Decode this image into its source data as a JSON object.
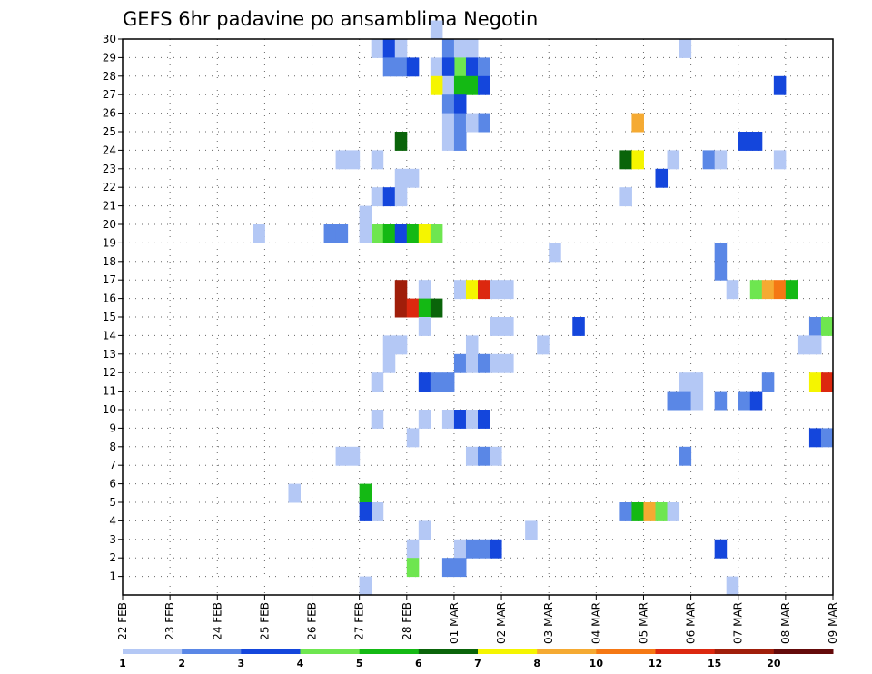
{
  "chart_data": {
    "type": "heatmap",
    "title": "GEFS 6hr padavine po ansamblima Negotin",
    "x_labels": [
      "22 FEB",
      "23 FEB",
      "24 FEB",
      "25 FEB",
      "26 FEB",
      "27 FEB",
      "28 FEB",
      "01 MAR",
      "02 MAR",
      "03 MAR",
      "04 MAR",
      "05 MAR",
      "06 MAR",
      "07 MAR",
      "08 MAR",
      "09 MAR"
    ],
    "x_unit": "6-hour steps",
    "x_range": [
      0,
      60
    ],
    "y_range": [
      0,
      30
    ],
    "y_ticks": [
      1,
      2,
      3,
      4,
      5,
      6,
      7,
      8,
      9,
      10,
      11,
      12,
      13,
      14,
      15,
      16,
      17,
      18,
      19,
      20,
      21,
      22,
      23,
      24,
      25,
      26,
      27,
      28,
      29,
      30
    ],
    "grid": true,
    "legend_placement": "bottom",
    "levels": [
      1,
      2,
      3,
      4,
      5,
      6,
      7,
      8,
      10,
      12,
      15,
      20
    ],
    "colors": [
      "#b4c8f5",
      "#5a87e6",
      "#1446dc",
      "#6ee650",
      "#14b914",
      "#0a640a",
      "#f5f500",
      "#f5aa32",
      "#f57814",
      "#dc280f",
      "#a01e0a",
      "#640a0a"
    ],
    "cells": [
      [
        26.5,
        30,
        0
      ],
      [
        27.5,
        29,
        1
      ],
      [
        29.5,
        29,
        0
      ],
      [
        28.5,
        29,
        0
      ],
      [
        21.5,
        29,
        0
      ],
      [
        22.5,
        29,
        0
      ],
      [
        22.5,
        29,
        2
      ],
      [
        23.5,
        29,
        0
      ],
      [
        47.5,
        29,
        0
      ],
      [
        28.5,
        28,
        3
      ],
      [
        29.5,
        28,
        2
      ],
      [
        30.5,
        28,
        1
      ],
      [
        22.5,
        28,
        1
      ],
      [
        23.5,
        28,
        1
      ],
      [
        24.5,
        28,
        2
      ],
      [
        26.5,
        28,
        0
      ],
      [
        27.5,
        28,
        2
      ],
      [
        27.5,
        27,
        0
      ],
      [
        28.5,
        27,
        4
      ],
      [
        29.5,
        27,
        4
      ],
      [
        30.5,
        27,
        2
      ],
      [
        26.5,
        27,
        6
      ],
      [
        55.5,
        27,
        2
      ],
      [
        27.5,
        26,
        1
      ],
      [
        28.5,
        26,
        2
      ],
      [
        27.5,
        25,
        0
      ],
      [
        28.5,
        25,
        1
      ],
      [
        30.5,
        25,
        1
      ],
      [
        29.5,
        25,
        0
      ],
      [
        43.5,
        25,
        7
      ],
      [
        27.5,
        24,
        0
      ],
      [
        28.5,
        24,
        0
      ],
      [
        28.5,
        24,
        1
      ],
      [
        23.5,
        24,
        5
      ],
      [
        52.5,
        24,
        2
      ],
      [
        53.5,
        24,
        2
      ],
      [
        18.5,
        23,
        0
      ],
      [
        21.5,
        23,
        0
      ],
      [
        42.5,
        23,
        5
      ],
      [
        43.5,
        23,
        6
      ],
      [
        46.5,
        23,
        0
      ],
      [
        49.5,
        23,
        1
      ],
      [
        50.5,
        23,
        0
      ],
      [
        55.5,
        23,
        0
      ],
      [
        19.5,
        23,
        0
      ],
      [
        45.5,
        22,
        2
      ],
      [
        23.5,
        22,
        0
      ],
      [
        24.5,
        22,
        0
      ],
      [
        21.5,
        21,
        0
      ],
      [
        22.5,
        21,
        2
      ],
      [
        23.5,
        21,
        0
      ],
      [
        42.5,
        21,
        0
      ],
      [
        20.5,
        20,
        0
      ],
      [
        11.5,
        19,
        0
      ],
      [
        17.5,
        19,
        1
      ],
      [
        18.5,
        19,
        1
      ],
      [
        21.5,
        19,
        3
      ],
      [
        22.5,
        19,
        4
      ],
      [
        23.5,
        19,
        2
      ],
      [
        24.5,
        19,
        4
      ],
      [
        25.5,
        19,
        6
      ],
      [
        26.5,
        19,
        3
      ],
      [
        20.5,
        19,
        0
      ],
      [
        36.5,
        18,
        0
      ],
      [
        50.5,
        18,
        1
      ],
      [
        25.5,
        16,
        0
      ],
      [
        28.5,
        16,
        0
      ],
      [
        29.5,
        16,
        6
      ],
      [
        30.5,
        16,
        9
      ],
      [
        31.5,
        16,
        0
      ],
      [
        32.5,
        16,
        0
      ],
      [
        51.5,
        16,
        0
      ],
      [
        53.5,
        16,
        3
      ],
      [
        54.5,
        16,
        7
      ],
      [
        55.5,
        16,
        8
      ],
      [
        56.5,
        16,
        4
      ],
      [
        50.5,
        17,
        1
      ],
      [
        23.5,
        15,
        10
      ],
      [
        24.5,
        15,
        9
      ],
      [
        25.5,
        15,
        4
      ],
      [
        26.5,
        15,
        5
      ],
      [
        23.5,
        16,
        10
      ],
      [
        25.5,
        14,
        0
      ],
      [
        31.5,
        14,
        0
      ],
      [
        32.5,
        14,
        0
      ],
      [
        38.5,
        14,
        2
      ],
      [
        58.5,
        14,
        1
      ],
      [
        59.5,
        14,
        3
      ],
      [
        22.5,
        13,
        0
      ],
      [
        23.5,
        13,
        0
      ],
      [
        29.5,
        13,
        0
      ],
      [
        35.5,
        13,
        0
      ],
      [
        57.5,
        13,
        0
      ],
      [
        58.5,
        13,
        0
      ],
      [
        22.5,
        12,
        0
      ],
      [
        28.5,
        12,
        1
      ],
      [
        29.5,
        12,
        0
      ],
      [
        30.5,
        12,
        1
      ],
      [
        31.5,
        12,
        0
      ],
      [
        32.5,
        12,
        0
      ],
      [
        21.5,
        11,
        0
      ],
      [
        25.5,
        11,
        2
      ],
      [
        26.5,
        11,
        1
      ],
      [
        27.5,
        11,
        1
      ],
      [
        47.5,
        11,
        0
      ],
      [
        48.5,
        11,
        0
      ],
      [
        54.5,
        11,
        1
      ],
      [
        58.5,
        11,
        6
      ],
      [
        59.5,
        11,
        9
      ],
      [
        46.5,
        10,
        1
      ],
      [
        47.5,
        10,
        1
      ],
      [
        48.5,
        10,
        0
      ],
      [
        50.5,
        10,
        1
      ],
      [
        52.5,
        10,
        1
      ],
      [
        53.5,
        10,
        2
      ],
      [
        21.5,
        9,
        0
      ],
      [
        25.5,
        9,
        0
      ],
      [
        27.5,
        9,
        0
      ],
      [
        28.5,
        9,
        2
      ],
      [
        29.5,
        9,
        0
      ],
      [
        30.5,
        9,
        2
      ],
      [
        24.5,
        8,
        0
      ],
      [
        58.5,
        8,
        2
      ],
      [
        59.5,
        8,
        1
      ],
      [
        18.5,
        7,
        0
      ],
      [
        19.5,
        7,
        0
      ],
      [
        29.5,
        7,
        0
      ],
      [
        30.5,
        7,
        1
      ],
      [
        31.5,
        7,
        0
      ],
      [
        47.5,
        7,
        1
      ],
      [
        14.5,
        5,
        0
      ],
      [
        20.5,
        5,
        4
      ],
      [
        21.5,
        4,
        0
      ],
      [
        20.5,
        4,
        2
      ],
      [
        42.5,
        4,
        1
      ],
      [
        43.5,
        4,
        4
      ],
      [
        44.5,
        4,
        7
      ],
      [
        45.5,
        4,
        3
      ],
      [
        46.5,
        4,
        0
      ],
      [
        25.5,
        3,
        0
      ],
      [
        34.5,
        3,
        0
      ],
      [
        24.5,
        2,
        0
      ],
      [
        28.5,
        2,
        0
      ],
      [
        29.5,
        2,
        1
      ],
      [
        30.5,
        2,
        1
      ],
      [
        31.5,
        2,
        2
      ],
      [
        50.5,
        2,
        2
      ],
      [
        24.5,
        1,
        3
      ],
      [
        27.5,
        1,
        1
      ],
      [
        28.5,
        1,
        1
      ],
      [
        20.5,
        0,
        0
      ],
      [
        51.5,
        0,
        0
      ]
    ]
  }
}
